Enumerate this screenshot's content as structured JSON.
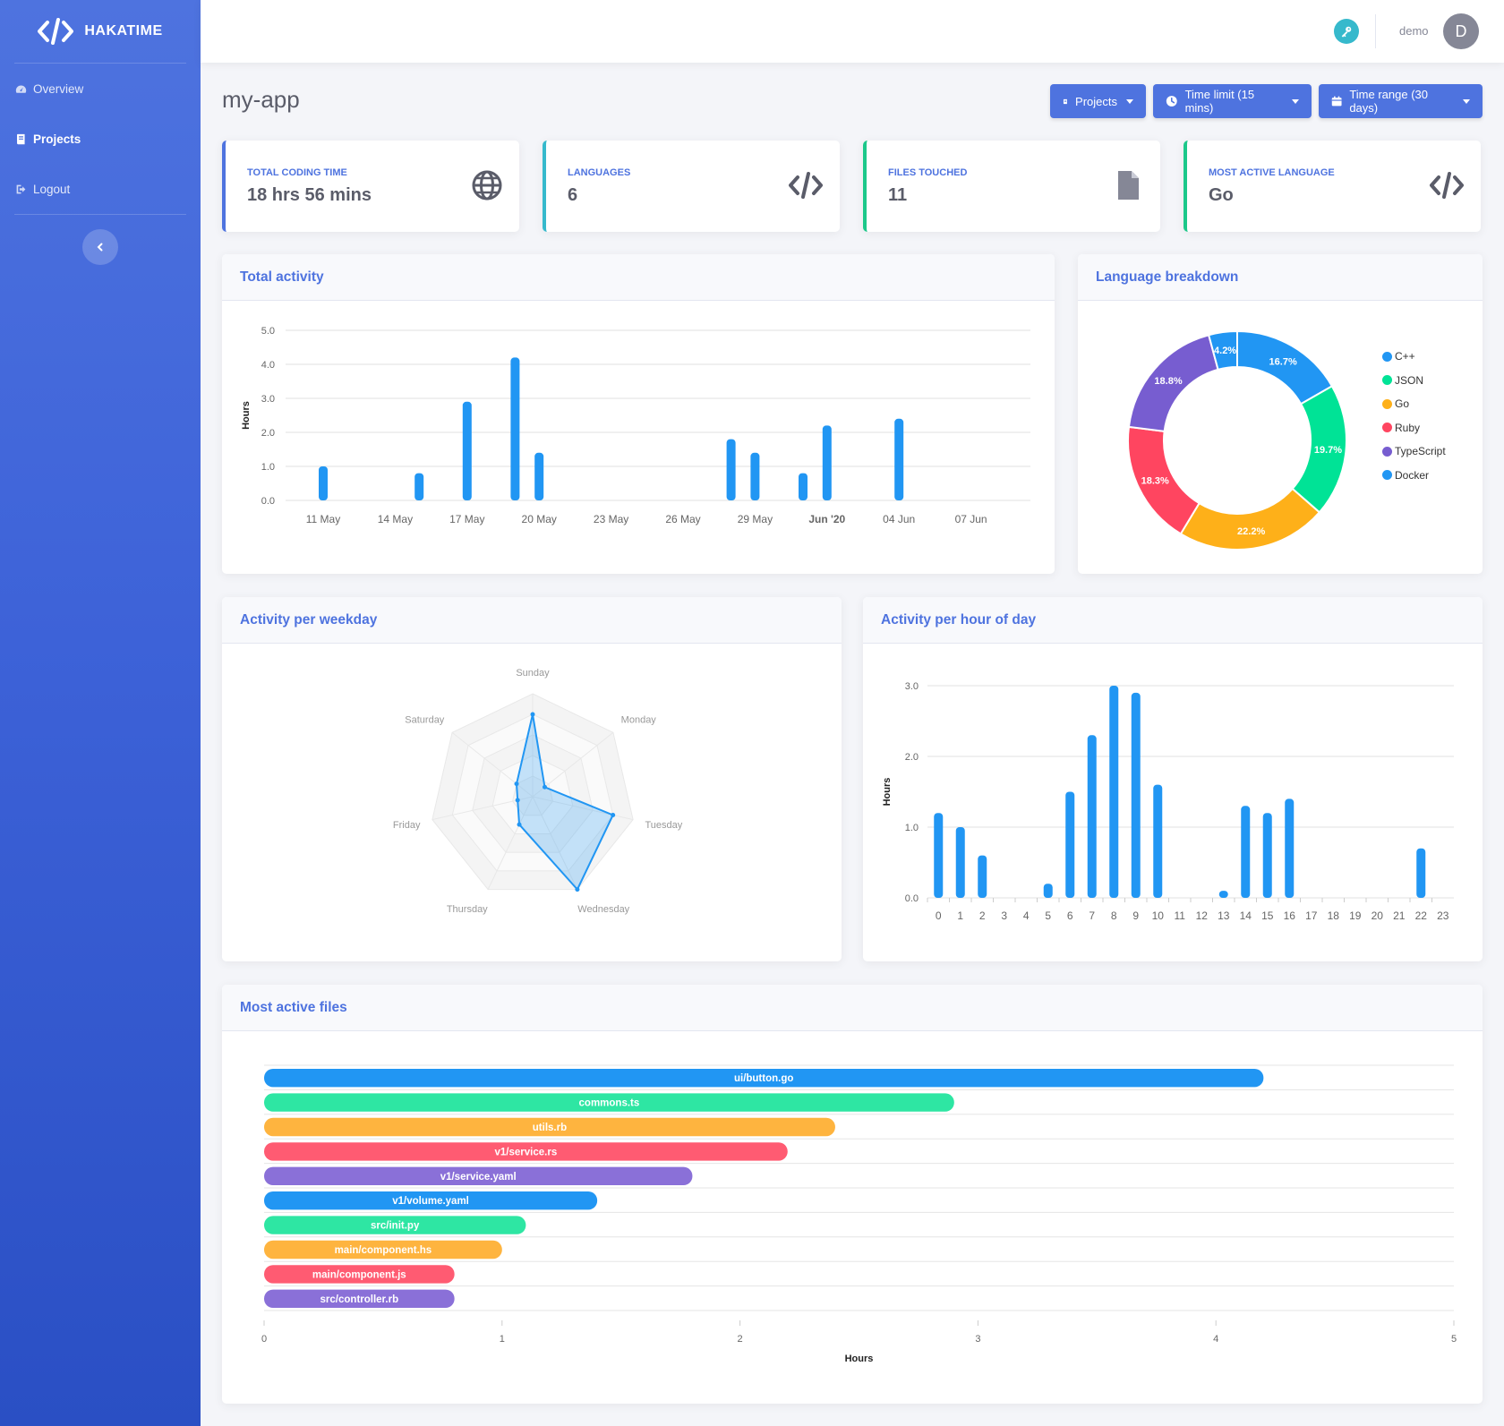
{
  "brand": {
    "name": "HAKATIME"
  },
  "sidebar": {
    "items": [
      {
        "label": "Overview",
        "icon": "dashboard-icon",
        "active": false
      },
      {
        "label": "Projects",
        "icon": "book-icon",
        "active": true
      },
      {
        "label": "Logout",
        "icon": "logout-icon",
        "active": false
      }
    ]
  },
  "topbar": {
    "username": "demo",
    "avatar_letter": "D"
  },
  "page": {
    "title": "my-app"
  },
  "filters": {
    "projects": "Projects",
    "time_limit": "Time limit (15 mins)",
    "time_range": "Time range (30 days)"
  },
  "stats": [
    {
      "label": "TOTAL CODING TIME",
      "value": "18 hrs 56 mins",
      "icon": "globe-icon",
      "accent": "#4e73df"
    },
    {
      "label": "LANGUAGES",
      "value": "6",
      "icon": "code-icon",
      "accent": "#36b9cc"
    },
    {
      "label": "FILES TOUCHED",
      "value": "11",
      "icon": "file-icon",
      "accent": "#1cc88a"
    },
    {
      "label": "MOST ACTIVE LANGUAGE",
      "value": "Go",
      "icon": "code-icon",
      "accent": "#1cc88a"
    }
  ],
  "panels": {
    "total_activity": "Total activity",
    "language_breakdown": "Language breakdown",
    "weekday": "Activity per weekday",
    "hourly": "Activity per hour of day",
    "files": "Most active files"
  },
  "chart_data": [
    {
      "id": "total_activity",
      "type": "bar",
      "title": "Total activity",
      "ylabel": "Hours",
      "ylim": [
        0,
        5
      ],
      "yticks": [
        "0.0",
        "1.0",
        "2.0",
        "3.0",
        "4.0",
        "5.0"
      ],
      "xtick_labels": [
        "11 May",
        "14 May",
        "17 May",
        "20 May",
        "23 May",
        "26 May",
        "29 May",
        "Jun '20",
        "04 Jun",
        "07 Jun"
      ],
      "x_days": [
        0,
        3,
        6,
        9,
        12,
        15,
        18,
        21,
        24,
        27
      ],
      "series": [
        {
          "name": "Hours",
          "days": [
            0,
            4,
            6,
            8,
            9,
            17,
            18,
            20,
            21,
            24
          ],
          "values": [
            1.0,
            0.8,
            2.9,
            4.2,
            1.4,
            1.8,
            1.4,
            0.8,
            2.2,
            2.4
          ]
        }
      ]
    },
    {
      "id": "language_breakdown",
      "type": "pie",
      "title": "Language breakdown",
      "labels": [
        "C++",
        "JSON",
        "Go",
        "Ruby",
        "TypeScript",
        "Docker"
      ],
      "values": [
        16.7,
        19.7,
        22.2,
        18.3,
        18.8,
        4.2
      ],
      "value_labels": [
        "16.7%",
        "19.7%",
        "22.2%",
        "18.3%",
        "18.8%",
        "4.2%"
      ],
      "colors": [
        "#2196f3",
        "#00e396",
        "#feb019",
        "#ff4560",
        "#775dd0",
        "#2196f3"
      ]
    },
    {
      "id": "weekday",
      "type": "radar",
      "title": "Activity per weekday",
      "labels": [
        "Sunday",
        "Monday",
        "Tuesday",
        "Wednesday",
        "Thursday",
        "Friday",
        "Saturday"
      ],
      "values": [
        0.8,
        0.15,
        0.8,
        1.0,
        0.3,
        0.15,
        0.2
      ],
      "max": 1.0,
      "levels": 5
    },
    {
      "id": "hourly",
      "type": "bar",
      "title": "Activity per hour of day",
      "ylabel": "Hours",
      "ylim": [
        0,
        3
      ],
      "yticks": [
        "0.0",
        "1.0",
        "2.0",
        "3.0"
      ],
      "categories": [
        "0",
        "1",
        "2",
        "3",
        "4",
        "5",
        "6",
        "7",
        "8",
        "9",
        "10",
        "11",
        "12",
        "13",
        "14",
        "15",
        "16",
        "17",
        "18",
        "19",
        "20",
        "21",
        "22",
        "23"
      ],
      "values": [
        1.2,
        1.0,
        0.6,
        0,
        0,
        0.2,
        1.5,
        2.3,
        3.0,
        2.9,
        1.6,
        0,
        0,
        0.1,
        1.3,
        1.2,
        1.4,
        0,
        0,
        0,
        0,
        0,
        0.7,
        0
      ]
    },
    {
      "id": "files",
      "type": "bar",
      "orientation": "horizontal",
      "title": "Most active files",
      "xlabel": "Hours",
      "xlim": [
        0,
        5
      ],
      "xticks": [
        "0",
        "1",
        "2",
        "3",
        "4",
        "5"
      ],
      "categories": [
        "ui/button.go",
        "commons.ts",
        "utils.rb",
        "v1/service.rs",
        "v1/service.yaml",
        "v1/volume.yaml",
        "src/init.py",
        "main/component.hs",
        "main/component.js",
        "src/controller.rb"
      ],
      "values": [
        4.2,
        2.9,
        2.4,
        2.2,
        1.8,
        1.4,
        1.1,
        1.0,
        0.8,
        0.8
      ],
      "colors": [
        "#2196f3",
        "#2ee6a3",
        "#feb43f",
        "#ff5b72",
        "#8a70d8",
        "#2196f3",
        "#2ee6a3",
        "#feb43f",
        "#ff5b72",
        "#8a70d8"
      ]
    }
  ]
}
